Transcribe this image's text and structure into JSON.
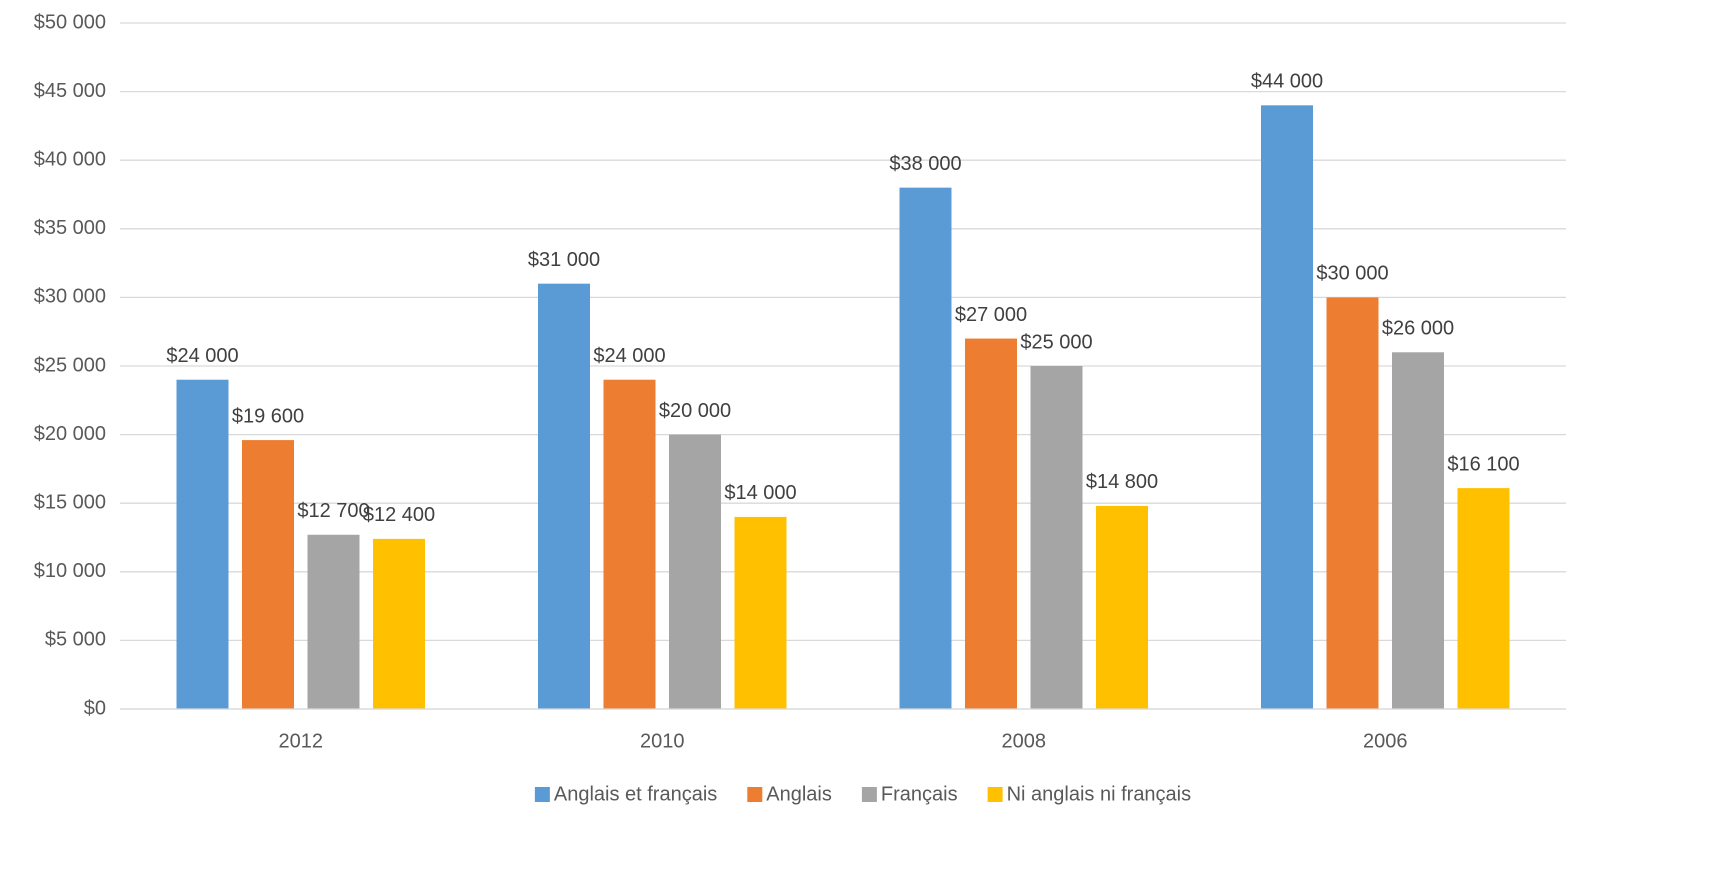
{
  "chart_data": {
    "type": "bar",
    "categories": [
      "2012",
      "2010",
      "2008",
      "2006"
    ],
    "series": [
      {
        "name": "Anglais et français",
        "color": "#5b9bd5",
        "values": [
          24000,
          31000,
          38000,
          44000
        ],
        "value_labels": [
          "$24 000",
          "$31 000",
          "$38 000",
          "$44 000"
        ]
      },
      {
        "name": "Anglais",
        "color": "#ed7d31",
        "values": [
          19600,
          24000,
          27000,
          30000
        ],
        "value_labels": [
          "$19 600",
          "$24 000",
          "$27 000",
          "$30 000"
        ]
      },
      {
        "name": "Français",
        "color": "#a5a5a5",
        "values": [
          12700,
          20000,
          25000,
          26000
        ],
        "value_labels": [
          "$12 700",
          "$20 000",
          "$25 000",
          "$26 000"
        ]
      },
      {
        "name": "Ni anglais ni français",
        "color": "#ffc000",
        "values": [
          12400,
          14000,
          14800,
          16100
        ],
        "value_labels": [
          "$12 400",
          "$14 000",
          "$14 800",
          "$16 100"
        ]
      }
    ],
    "ylim": [
      0,
      50000
    ],
    "yticks": [
      {
        "value": 0,
        "label": "$0"
      },
      {
        "value": 5000,
        "label": "$5 000"
      },
      {
        "value": 10000,
        "label": "$10 000"
      },
      {
        "value": 15000,
        "label": "$15 000"
      },
      {
        "value": 20000,
        "label": "$20 000"
      },
      {
        "value": 25000,
        "label": "$25 000"
      },
      {
        "value": 30000,
        "label": "$30 000"
      },
      {
        "value": 35000,
        "label": "$35 000"
      },
      {
        "value": 40000,
        "label": "$40 000"
      },
      {
        "value": 45000,
        "label": "$45 000"
      },
      {
        "value": 50000,
        "label": "$50 000"
      }
    ],
    "grid": true,
    "legend": "bottom"
  }
}
